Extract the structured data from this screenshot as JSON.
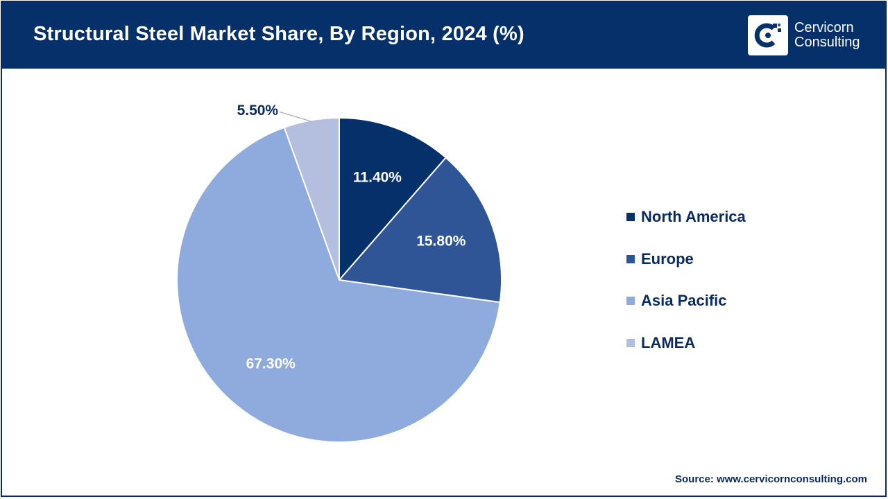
{
  "header": {
    "title": "Structural Steel Market Share, By Region, 2024 (%)",
    "logo_line1": "Cervicorn",
    "logo_line2": "Consulting",
    "logo_icon": "cervicorn-logo-icon"
  },
  "colors": {
    "header_bg": "#05306a",
    "north_america": "#05306a",
    "europe": "#2f5597",
    "asia_pacific": "#8faadc",
    "lamea": "#b4bfdf"
  },
  "chart_data": {
    "type": "pie",
    "categories": [
      "North America",
      "Europe",
      "Asia Pacific",
      "LAMEA"
    ],
    "values": [
      11.4,
      15.8,
      67.3,
      5.5
    ],
    "data_labels": [
      "11.40%",
      "15.80%",
      "67.30%",
      "5.50%"
    ],
    "colors": [
      "#05306a",
      "#2f5597",
      "#8faadc",
      "#b4bfdf"
    ],
    "start_angle_deg": 0,
    "direction": "clockwise",
    "legend_position": "right"
  },
  "legend": {
    "items": [
      {
        "label": "North America",
        "color": "#05306a"
      },
      {
        "label": "Europe",
        "color": "#2f5597"
      },
      {
        "label": "Asia Pacific",
        "color": "#8faadc"
      },
      {
        "label": "LAMEA",
        "color": "#b4bfdf"
      }
    ]
  },
  "footer": {
    "source": "Source: www.cervicornconsulting.com"
  }
}
